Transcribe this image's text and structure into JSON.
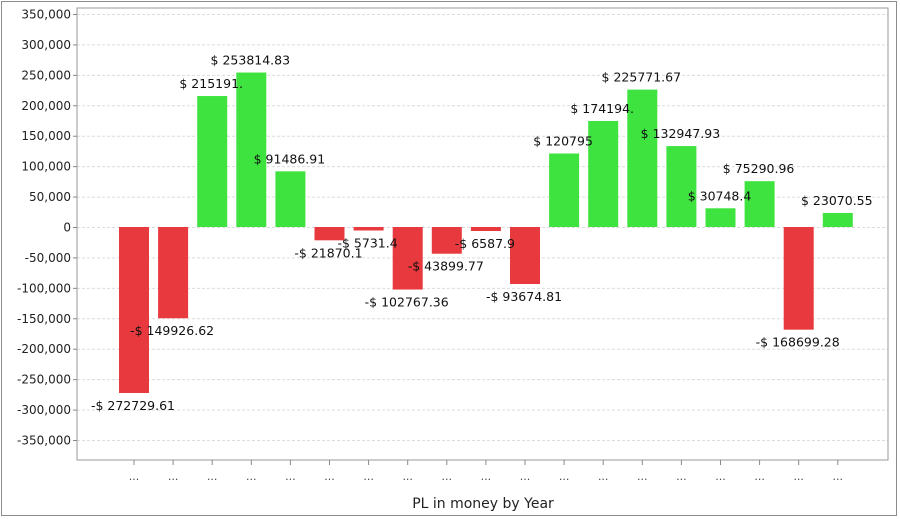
{
  "chart_data": {
    "type": "bar",
    "xlabel": "PL in money by Year",
    "ylabel": "",
    "ylim": [
      -350000,
      350000
    ],
    "yticks": [
      350000,
      300000,
      250000,
      200000,
      150000,
      100000,
      50000,
      0,
      -50000,
      -100000,
      -150000,
      -200000,
      -250000,
      -300000,
      -350000
    ],
    "ytick_labels": [
      "350,000",
      "300,000",
      "250,000",
      "200,000",
      "150,000",
      "100,000",
      "50,000",
      "0",
      "-50,000",
      "-100,000",
      "-150,000",
      "-200,000",
      "-250,000",
      "-300,000",
      "-350,000"
    ],
    "grid": true,
    "positive_color": "#3fe33f",
    "negative_color": "#e8393e",
    "categories": [
      "...",
      "...",
      "...",
      "...",
      "...",
      "...",
      "...",
      "...",
      "...",
      "...",
      "...",
      "...",
      "...",
      "...",
      "...",
      "...",
      "...",
      "...",
      "..."
    ],
    "values": [
      -272729.61,
      -149926.62,
      215191,
      253814.83,
      91486.91,
      -21870.1,
      -5731.4,
      -102767.36,
      -43899.77,
      -6587.9,
      -93674.81,
      120795,
      174194,
      225771.67,
      132947.93,
      30748.4,
      75290.96,
      -168699.28,
      23070.55
    ],
    "data_labels": [
      "-$ 272729.61",
      "-$ 149926.62",
      "$ 215191.",
      "$ 253814.83",
      "$ 91486.91",
      "-$ 21870.1",
      "-$ 5731.4",
      "-$ 102767.36",
      "-$ 43899.77",
      "-$ 6587.9",
      "-$ 93674.81",
      "$ 120795",
      "$ 174194.",
      "$ 225771.67",
      "$ 132947.93",
      "$ 30748.4",
      "$ 75290.96",
      "-$ 168699.28",
      "$ 23070.55"
    ]
  }
}
